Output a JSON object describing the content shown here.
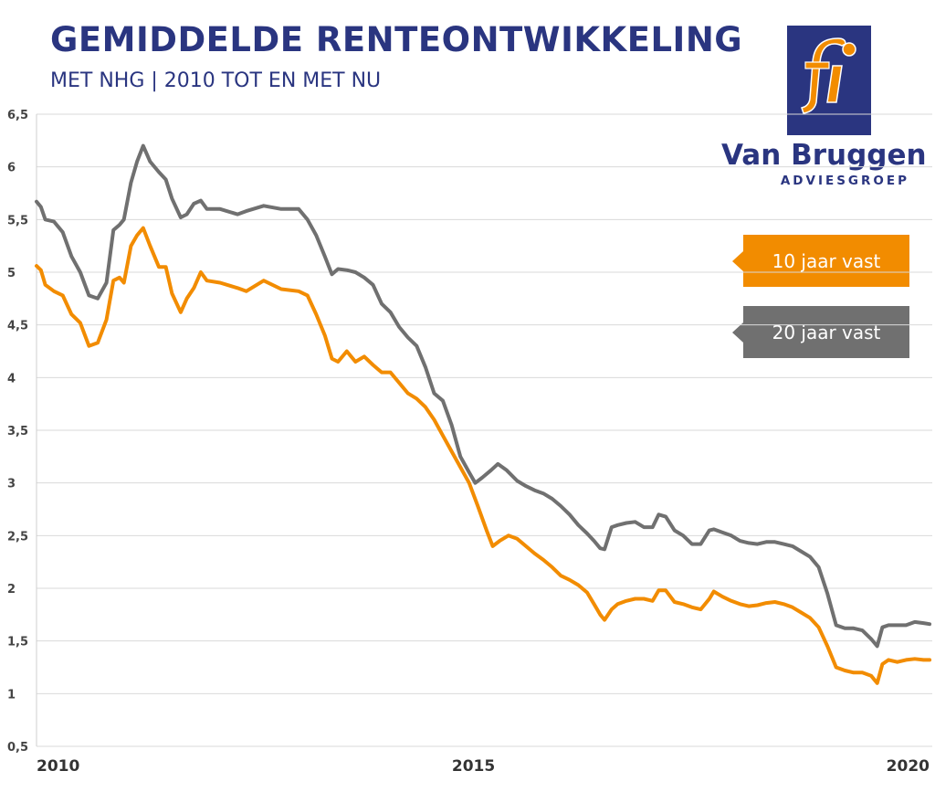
{
  "header": {
    "title": "GEMIDDELDE RENTEONTWIKKELING",
    "subtitle": "MET NHG | 2010 TOT EN MET NU"
  },
  "logo": {
    "name": "Van Bruggen",
    "sub": "ADVIESGROEP",
    "box_color": "#2a3580",
    "mark_color": "#f28c00"
  },
  "legend": [
    {
      "label": "10 jaar vast",
      "color": "#f28c00"
    },
    {
      "label": "20 jaar vast",
      "color": "#707070"
    }
  ],
  "chart_data": {
    "type": "line",
    "title": "GEMIDDELDE RENTEONTWIKKELING",
    "subtitle": "MET NHG | 2010 TOT EN MET NU",
    "xlabel": "",
    "ylabel": "",
    "xlim": [
      2010,
      2020.25
    ],
    "ylim": [
      0.5,
      6.5
    ],
    "x_ticks": [
      2010,
      2015,
      2020
    ],
    "x_tick_labels": [
      "2010",
      "2015",
      "2020"
    ],
    "y_ticks": [
      0.5,
      1,
      1.5,
      2,
      2.5,
      3,
      3.5,
      4,
      4.5,
      5,
      5.5,
      6,
      6.5
    ],
    "y_tick_labels": [
      "0,5",
      "1",
      "1,5",
      "2",
      "2,5",
      "3",
      "3,5",
      "4",
      "4,5",
      "5",
      "5,5",
      "6",
      "6,5"
    ],
    "grid": true,
    "legend_position": "right",
    "series": [
      {
        "name": "10 jaar vast",
        "color": "#f28c00",
        "points": [
          [
            2010.0,
            5.06
          ],
          [
            2010.05,
            5.02
          ],
          [
            2010.1,
            4.88
          ],
          [
            2010.2,
            4.82
          ],
          [
            2010.3,
            4.78
          ],
          [
            2010.4,
            4.6
          ],
          [
            2010.5,
            4.52
          ],
          [
            2010.6,
            4.3
          ],
          [
            2010.7,
            4.33
          ],
          [
            2010.8,
            4.55
          ],
          [
            2010.88,
            4.92
          ],
          [
            2010.95,
            4.95
          ],
          [
            2011.0,
            4.9
          ],
          [
            2011.08,
            5.25
          ],
          [
            2011.15,
            5.35
          ],
          [
            2011.22,
            5.42
          ],
          [
            2011.3,
            5.25
          ],
          [
            2011.4,
            5.05
          ],
          [
            2011.48,
            5.05
          ],
          [
            2011.55,
            4.8
          ],
          [
            2011.65,
            4.62
          ],
          [
            2011.72,
            4.75
          ],
          [
            2011.8,
            4.85
          ],
          [
            2011.88,
            5.0
          ],
          [
            2011.95,
            4.92
          ],
          [
            2012.1,
            4.9
          ],
          [
            2012.3,
            4.85
          ],
          [
            2012.4,
            4.82
          ],
          [
            2012.6,
            4.92
          ],
          [
            2012.8,
            4.84
          ],
          [
            2013.0,
            4.82
          ],
          [
            2013.1,
            4.78
          ],
          [
            2013.2,
            4.6
          ],
          [
            2013.3,
            4.4
          ],
          [
            2013.38,
            4.18
          ],
          [
            2013.45,
            4.15
          ],
          [
            2013.55,
            4.25
          ],
          [
            2013.65,
            4.15
          ],
          [
            2013.75,
            4.2
          ],
          [
            2013.85,
            4.12
          ],
          [
            2013.95,
            4.05
          ],
          [
            2014.05,
            4.05
          ],
          [
            2014.15,
            3.95
          ],
          [
            2014.25,
            3.85
          ],
          [
            2014.35,
            3.8
          ],
          [
            2014.45,
            3.72
          ],
          [
            2014.55,
            3.6
          ],
          [
            2014.65,
            3.45
          ],
          [
            2014.75,
            3.3
          ],
          [
            2014.85,
            3.15
          ],
          [
            2014.95,
            3.0
          ],
          [
            2015.05,
            2.78
          ],
          [
            2015.15,
            2.55
          ],
          [
            2015.22,
            2.4
          ],
          [
            2015.3,
            2.45
          ],
          [
            2015.4,
            2.5
          ],
          [
            2015.5,
            2.47
          ],
          [
            2015.6,
            2.4
          ],
          [
            2015.7,
            2.33
          ],
          [
            2015.8,
            2.27
          ],
          [
            2015.9,
            2.2
          ],
          [
            2016.0,
            2.12
          ],
          [
            2016.1,
            2.08
          ],
          [
            2016.2,
            2.03
          ],
          [
            2016.3,
            1.96
          ],
          [
            2016.38,
            1.85
          ],
          [
            2016.45,
            1.75
          ],
          [
            2016.5,
            1.7
          ],
          [
            2016.58,
            1.8
          ],
          [
            2016.65,
            1.85
          ],
          [
            2016.75,
            1.88
          ],
          [
            2016.85,
            1.9
          ],
          [
            2016.95,
            1.9
          ],
          [
            2017.05,
            1.88
          ],
          [
            2017.12,
            1.98
          ],
          [
            2017.2,
            1.98
          ],
          [
            2017.3,
            1.87
          ],
          [
            2017.4,
            1.85
          ],
          [
            2017.5,
            1.82
          ],
          [
            2017.6,
            1.8
          ],
          [
            2017.7,
            1.9
          ],
          [
            2017.75,
            1.97
          ],
          [
            2017.85,
            1.92
          ],
          [
            2017.95,
            1.88
          ],
          [
            2018.05,
            1.85
          ],
          [
            2018.15,
            1.83
          ],
          [
            2018.25,
            1.84
          ],
          [
            2018.35,
            1.86
          ],
          [
            2018.45,
            1.87
          ],
          [
            2018.55,
            1.85
          ],
          [
            2018.65,
            1.82
          ],
          [
            2018.75,
            1.77
          ],
          [
            2018.85,
            1.72
          ],
          [
            2018.95,
            1.63
          ],
          [
            2019.05,
            1.45
          ],
          [
            2019.15,
            1.25
          ],
          [
            2019.25,
            1.22
          ],
          [
            2019.35,
            1.2
          ],
          [
            2019.45,
            1.2
          ],
          [
            2019.55,
            1.17
          ],
          [
            2019.62,
            1.1
          ],
          [
            2019.68,
            1.28
          ],
          [
            2019.75,
            1.32
          ],
          [
            2019.85,
            1.3
          ],
          [
            2019.95,
            1.32
          ],
          [
            2020.05,
            1.33
          ],
          [
            2020.15,
            1.32
          ],
          [
            2020.22,
            1.32
          ]
        ]
      },
      {
        "name": "20 jaar vast",
        "color": "#707070",
        "points": [
          [
            2010.0,
            5.67
          ],
          [
            2010.05,
            5.62
          ],
          [
            2010.1,
            5.5
          ],
          [
            2010.2,
            5.48
          ],
          [
            2010.3,
            5.38
          ],
          [
            2010.4,
            5.15
          ],
          [
            2010.5,
            5.0
          ],
          [
            2010.6,
            4.78
          ],
          [
            2010.7,
            4.75
          ],
          [
            2010.8,
            4.9
          ],
          [
            2010.88,
            5.4
          ],
          [
            2010.95,
            5.45
          ],
          [
            2011.0,
            5.5
          ],
          [
            2011.08,
            5.85
          ],
          [
            2011.15,
            6.05
          ],
          [
            2011.22,
            6.2
          ],
          [
            2011.3,
            6.05
          ],
          [
            2011.4,
            5.95
          ],
          [
            2011.48,
            5.88
          ],
          [
            2011.55,
            5.7
          ],
          [
            2011.65,
            5.52
          ],
          [
            2011.72,
            5.55
          ],
          [
            2011.8,
            5.65
          ],
          [
            2011.88,
            5.68
          ],
          [
            2011.95,
            5.6
          ],
          [
            2012.1,
            5.6
          ],
          [
            2012.3,
            5.55
          ],
          [
            2012.4,
            5.58
          ],
          [
            2012.6,
            5.63
          ],
          [
            2012.8,
            5.6
          ],
          [
            2013.0,
            5.6
          ],
          [
            2013.1,
            5.5
          ],
          [
            2013.2,
            5.35
          ],
          [
            2013.3,
            5.15
          ],
          [
            2013.38,
            4.98
          ],
          [
            2013.45,
            5.03
          ],
          [
            2013.55,
            5.02
          ],
          [
            2013.65,
            5.0
          ],
          [
            2013.75,
            4.95
          ],
          [
            2013.85,
            4.88
          ],
          [
            2013.95,
            4.7
          ],
          [
            2014.05,
            4.62
          ],
          [
            2014.15,
            4.48
          ],
          [
            2014.25,
            4.38
          ],
          [
            2014.35,
            4.3
          ],
          [
            2014.45,
            4.1
          ],
          [
            2014.55,
            3.85
          ],
          [
            2014.65,
            3.78
          ],
          [
            2014.75,
            3.55
          ],
          [
            2014.85,
            3.25
          ],
          [
            2014.95,
            3.1
          ],
          [
            2015.02,
            3.0
          ],
          [
            2015.1,
            3.05
          ],
          [
            2015.2,
            3.12
          ],
          [
            2015.28,
            3.18
          ],
          [
            2015.38,
            3.12
          ],
          [
            2015.5,
            3.02
          ],
          [
            2015.6,
            2.97
          ],
          [
            2015.7,
            2.93
          ],
          [
            2015.8,
            2.9
          ],
          [
            2015.9,
            2.85
          ],
          [
            2016.0,
            2.78
          ],
          [
            2016.1,
            2.7
          ],
          [
            2016.2,
            2.6
          ],
          [
            2016.3,
            2.52
          ],
          [
            2016.38,
            2.45
          ],
          [
            2016.45,
            2.38
          ],
          [
            2016.5,
            2.37
          ],
          [
            2016.58,
            2.58
          ],
          [
            2016.65,
            2.6
          ],
          [
            2016.75,
            2.62
          ],
          [
            2016.85,
            2.63
          ],
          [
            2016.95,
            2.58
          ],
          [
            2017.05,
            2.58
          ],
          [
            2017.12,
            2.7
          ],
          [
            2017.2,
            2.68
          ],
          [
            2017.3,
            2.55
          ],
          [
            2017.4,
            2.5
          ],
          [
            2017.5,
            2.42
          ],
          [
            2017.6,
            2.42
          ],
          [
            2017.7,
            2.55
          ],
          [
            2017.75,
            2.56
          ],
          [
            2017.85,
            2.53
          ],
          [
            2017.95,
            2.5
          ],
          [
            2018.05,
            2.45
          ],
          [
            2018.15,
            2.43
          ],
          [
            2018.25,
            2.42
          ],
          [
            2018.35,
            2.44
          ],
          [
            2018.45,
            2.44
          ],
          [
            2018.55,
            2.42
          ],
          [
            2018.65,
            2.4
          ],
          [
            2018.75,
            2.35
          ],
          [
            2018.85,
            2.3
          ],
          [
            2018.95,
            2.2
          ],
          [
            2019.05,
            1.95
          ],
          [
            2019.15,
            1.65
          ],
          [
            2019.25,
            1.62
          ],
          [
            2019.35,
            1.62
          ],
          [
            2019.45,
            1.6
          ],
          [
            2019.55,
            1.52
          ],
          [
            2019.62,
            1.45
          ],
          [
            2019.68,
            1.63
          ],
          [
            2019.75,
            1.65
          ],
          [
            2019.85,
            1.65
          ],
          [
            2019.95,
            1.65
          ],
          [
            2020.05,
            1.68
          ],
          [
            2020.15,
            1.67
          ],
          [
            2020.22,
            1.66
          ]
        ]
      }
    ]
  }
}
